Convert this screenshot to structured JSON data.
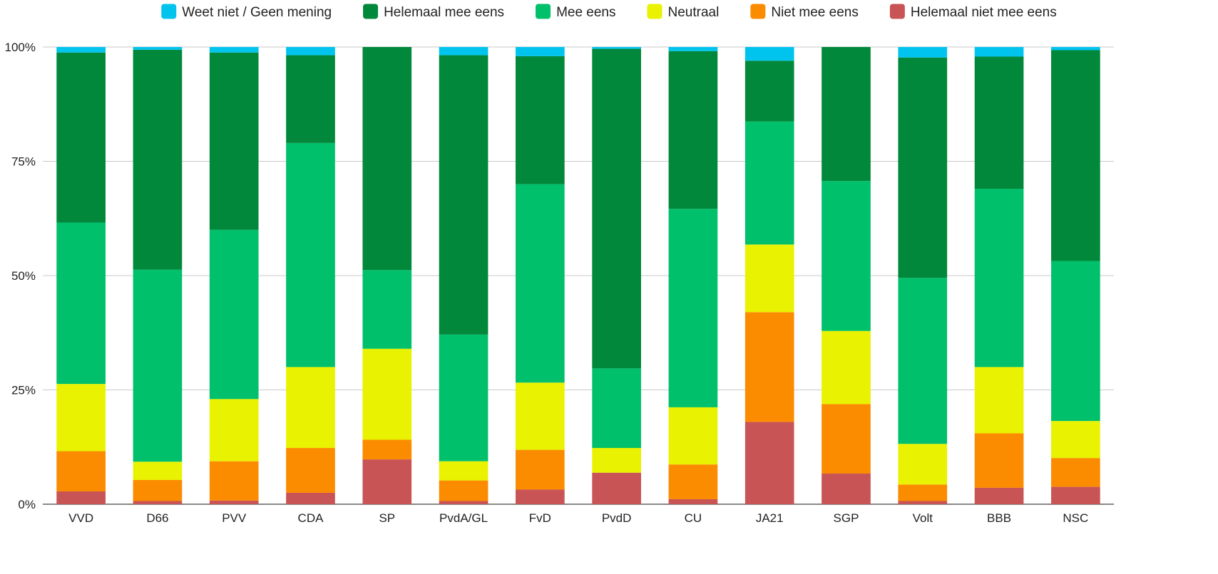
{
  "chart_data": {
    "type": "bar",
    "stacked": true,
    "normalized": true,
    "title": "",
    "xlabel": "",
    "ylabel": "",
    "ylim": [
      0,
      100
    ],
    "y_ticks": [
      "0%",
      "25%",
      "50%",
      "75%",
      "100%"
    ],
    "grid": true,
    "legend_position": "top",
    "categories": [
      "VVD",
      "D66",
      "PVV",
      "CDA",
      "SP",
      "PvdA/GL",
      "FvD",
      "PvdD",
      "CU",
      "JA21",
      "SGP",
      "Volt",
      "BBB",
      "NSC"
    ],
    "series": [
      {
        "name": "Helemaal niet mee eens",
        "color": "#c85456",
        "values": [
          2.8,
          0.7,
          0.8,
          2.5,
          9.8,
          0.7,
          3.2,
          6.9,
          1.1,
          18.0,
          6.7,
          0.7,
          3.6,
          3.8
        ]
      },
      {
        "name": "Niet mee eens",
        "color": "#fb8c00",
        "values": [
          8.8,
          4.6,
          8.6,
          9.8,
          4.3,
          4.5,
          8.7,
          0.0,
          7.6,
          24.0,
          15.2,
          3.6,
          11.9,
          6.3
        ]
      },
      {
        "name": "Neutraal",
        "color": "#e9f200",
        "values": [
          14.7,
          4.0,
          13.6,
          17.7,
          19.9,
          4.2,
          14.7,
          5.4,
          12.5,
          14.8,
          16.0,
          8.9,
          14.5,
          8.1
        ]
      },
      {
        "name": "Mee eens",
        "color": "#00c06b",
        "values": [
          35.3,
          42.0,
          37.0,
          49.0,
          17.2,
          27.7,
          43.4,
          17.4,
          43.4,
          26.9,
          32.8,
          36.3,
          39.0,
          35.0
        ]
      },
      {
        "name": "Helemaal mee eens",
        "color": "#01883a",
        "values": [
          37.2,
          48.1,
          38.8,
          19.2,
          48.8,
          61.1,
          28.0,
          69.9,
          34.5,
          13.3,
          29.3,
          48.2,
          28.9,
          46.1
        ]
      },
      {
        "name": "Weet niet / Geen mening",
        "color": "#00c4ee",
        "values": [
          1.2,
          0.6,
          1.2,
          1.8,
          0.0,
          1.8,
          2.0,
          0.4,
          0.9,
          3.0,
          0.0,
          2.3,
          2.1,
          0.7
        ]
      }
    ],
    "legend_order": [
      "Weet niet / Geen mening",
      "Helemaal mee eens",
      "Mee eens",
      "Neutraal",
      "Niet mee eens",
      "Helemaal niet mee eens"
    ]
  }
}
